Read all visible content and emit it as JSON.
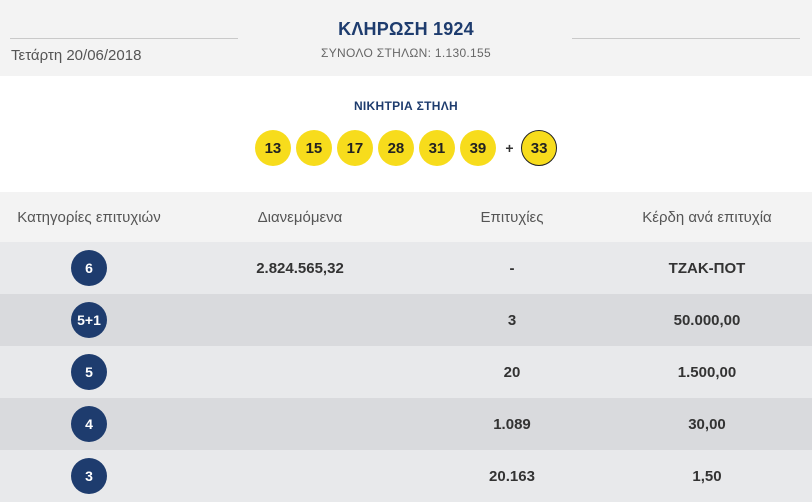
{
  "header": {
    "date": "Τετάρτη 20/06/2018",
    "title": "ΚΛΗΡΩΣΗ 1924",
    "subtitle": "ΣΥΝΟΛΟ ΣΤΗΛΩΝ: 1.130.155"
  },
  "winning": {
    "label": "ΝΙΚΗΤΡΙΑ ΣΤΗΛΗ",
    "numbers": [
      "13",
      "15",
      "17",
      "28",
      "31",
      "39"
    ],
    "plus": "+",
    "bonus": "33",
    "ball_color": "#f7dc1c"
  },
  "table": {
    "headers": [
      "Κατηγορίες επιτυχιών",
      "Διανεμόμενα",
      "Επιτυχίες",
      "Κέρδη ανά επιτυχία"
    ],
    "rows": [
      {
        "category": "6",
        "distributed": "2.824.565,32",
        "winners": "-",
        "prize": "ΤΖΑΚ-ΠΟΤ"
      },
      {
        "category": "5+1",
        "distributed": "",
        "winners": "3",
        "prize": "50.000,00"
      },
      {
        "category": "5",
        "distributed": "",
        "winners": "20",
        "prize": "1.500,00"
      },
      {
        "category": "4",
        "distributed": "",
        "winners": "1.089",
        "prize": "30,00"
      },
      {
        "category": "3",
        "distributed": "",
        "winners": "20.163",
        "prize": "1,50"
      }
    ],
    "badge_color": "#1e3c6e"
  }
}
